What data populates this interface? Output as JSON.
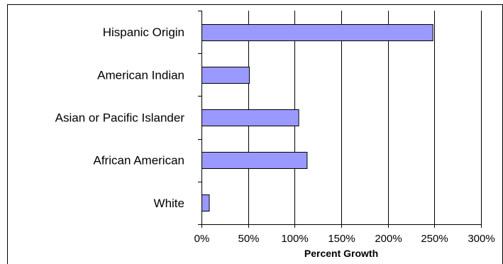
{
  "chart_data": {
    "type": "bar",
    "orientation": "horizontal",
    "categories": [
      "Hispanic Origin",
      "American Indian",
      "Asian or Pacific Islander",
      "African American",
      "White"
    ],
    "values": [
      248,
      51,
      104,
      113,
      8
    ],
    "unit": "%",
    "xlabel": "Percent Growth",
    "ylabel": "",
    "title": "",
    "xlim": [
      0,
      300
    ],
    "xticks": [
      0,
      50,
      100,
      150,
      200,
      250,
      300
    ],
    "xtick_labels": [
      "0%",
      "50%",
      "100%",
      "150%",
      "200%",
      "250%",
      "300%"
    ],
    "grid": "vertical",
    "legend": "none",
    "bar_color": "#9999ff"
  }
}
